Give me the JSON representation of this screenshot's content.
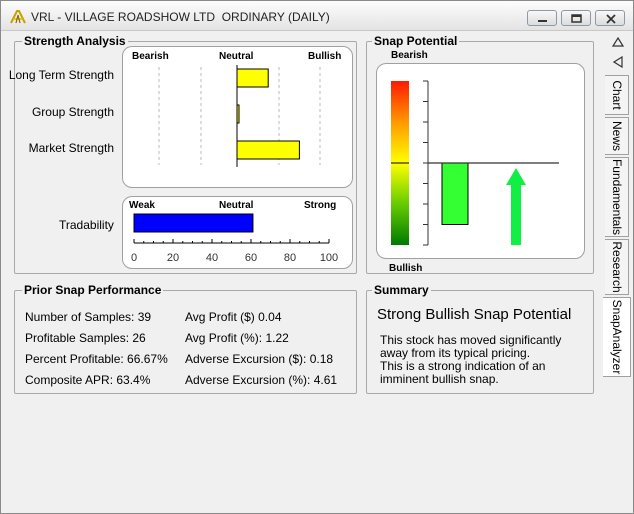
{
  "window": {
    "title": "VRL - VILLAGE ROADSHOW LTD  ORDINARY (DAILY)",
    "controls": {
      "minimize": "minimize",
      "restore": "restore",
      "close": "close"
    }
  },
  "strength_analysis": {
    "title": "Strength Analysis",
    "scale_labels": {
      "bearish": "Bearish",
      "neutral": "Neutral",
      "bullish": "Bullish"
    },
    "rows": [
      {
        "label": "Long Term Strength",
        "value": 0.3
      },
      {
        "label": "Group Strength",
        "value": 0.0
      },
      {
        "label": "Market Strength",
        "value": 0.6
      }
    ],
    "bar_color": "#ffff00"
  },
  "tradability": {
    "label": "Tradability",
    "scale_labels": {
      "weak": "Weak",
      "neutral": "Neutral",
      "strong": "Strong"
    },
    "value": 61,
    "ticks": [
      "0",
      "20",
      "40",
      "60",
      "80",
      "100"
    ],
    "bar_color": "#0000ff"
  },
  "snap_potential": {
    "title": "Snap Potential",
    "top_label": "Bearish",
    "bottom_label": "Bullish",
    "value": -0.75,
    "bar_color": "#33ff33",
    "arrow_color": "#11ee44",
    "arrow_direction": "up"
  },
  "prior_snap": {
    "title": "Prior Snap Performance",
    "left": [
      "Number of Samples: 39",
      "Profitable Samples: 26",
      "Percent Profitable: 66.67%",
      "Composite APR: 63.4%"
    ],
    "right": [
      "Avg Profit ($) 0.04",
      "Avg Profit (%): 1.22",
      "Adverse Excursion ($): 0.18",
      "Adverse Excursion (%): 4.61"
    ]
  },
  "summary": {
    "title": "Summary",
    "headline": "Strong Bullish Snap Potential",
    "lines": [
      "This stock has moved significantly",
      "away from its typical pricing.",
      "This is a strong indication of an",
      "imminent bullish snap."
    ]
  },
  "tabs": [
    {
      "label": "Chart",
      "active": false
    },
    {
      "label": "News",
      "active": false
    },
    {
      "label": "Fundamentals",
      "active": false
    },
    {
      "label": "Research",
      "active": false
    },
    {
      "label": "SnapAnalyzer",
      "active": true
    }
  ],
  "tab_scroll": {
    "up": "triangle-up-icon",
    "left": "triangle-left-icon"
  }
}
